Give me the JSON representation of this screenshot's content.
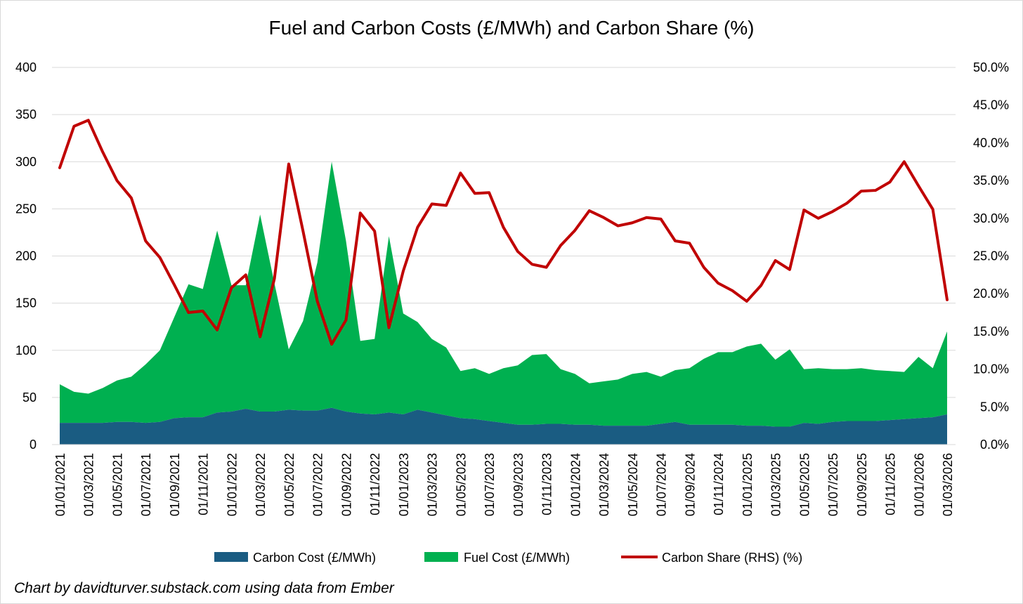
{
  "chart_data": {
    "type": "area",
    "title": "Fuel and Carbon Costs (£/MWh) and Carbon Share (%)",
    "xlabel": "",
    "ylabel": "",
    "y2label": "",
    "ylim": [
      0,
      400
    ],
    "y2lim": [
      0.0,
      0.5
    ],
    "yticks": [
      0,
      50,
      100,
      150,
      200,
      250,
      300,
      350,
      400
    ],
    "y2ticks": [
      "0.0%",
      "5.0%",
      "10.0%",
      "15.0%",
      "20.0%",
      "25.0%",
      "30.0%",
      "35.0%",
      "40.0%",
      "45.0%",
      "50.0%"
    ],
    "xtick_labels": [
      "01/01/2021",
      "01/03/2021",
      "01/05/2021",
      "01/07/2021",
      "01/09/2021",
      "01/11/2021",
      "01/01/2022",
      "01/03/2022",
      "01/05/2022",
      "01/07/2022",
      "01/09/2022",
      "01/11/2022",
      "01/01/2023",
      "01/03/2023",
      "01/05/2023",
      "01/07/2023",
      "01/09/2023",
      "01/11/2023",
      "01/01/2024",
      "01/03/2024",
      "01/05/2024",
      "01/07/2024",
      "01/09/2024",
      "01/11/2024",
      "01/01/2025",
      "01/03/2025",
      "01/05/2025",
      "01/07/2025",
      "01/09/2025",
      "01/11/2025",
      "01/01/2026",
      "01/03/2026"
    ],
    "x": [
      "2021-01",
      "2021-02",
      "2021-03",
      "2021-04",
      "2021-05",
      "2021-06",
      "2021-07",
      "2021-08",
      "2021-09",
      "2021-10",
      "2021-11",
      "2021-12",
      "2022-01",
      "2022-02",
      "2022-03",
      "2022-04",
      "2022-05",
      "2022-06",
      "2022-07",
      "2022-08",
      "2022-09",
      "2022-10",
      "2022-11",
      "2022-12",
      "2023-01",
      "2023-02",
      "2023-03",
      "2023-04",
      "2023-05",
      "2023-06",
      "2023-07",
      "2023-08",
      "2023-09",
      "2023-10",
      "2023-11",
      "2023-12",
      "2024-01",
      "2024-02",
      "2024-03",
      "2024-04",
      "2024-05",
      "2024-06",
      "2024-07",
      "2024-08",
      "2024-09",
      "2024-10",
      "2024-11",
      "2024-12",
      "2025-01",
      "2025-02",
      "2025-03",
      "2025-04",
      "2025-05",
      "2025-06",
      "2025-07",
      "2025-08",
      "2025-09",
      "2025-10",
      "2025-11",
      "2025-12",
      "2026-01",
      "2026-02",
      "2026-03"
    ],
    "series": [
      {
        "name": "Carbon Cost (£/MWh)",
        "type": "stacked-area",
        "color": "#1a5c82",
        "values": [
          23,
          23,
          23,
          23,
          24,
          24,
          23,
          24,
          28,
          29,
          29,
          34,
          35,
          38,
          35,
          35,
          37,
          36,
          36,
          39,
          35,
          33,
          32,
          34,
          32,
          37,
          34,
          31,
          28,
          27,
          25,
          23,
          21,
          21,
          22,
          22,
          21,
          21,
          20,
          20,
          20,
          20,
          22,
          24,
          21,
          21,
          21,
          21,
          20,
          20,
          19,
          19,
          23,
          22,
          24,
          25,
          25,
          25,
          26,
          27,
          28,
          29,
          32
        ]
      },
      {
        "name": "Fuel Cost (£/MWh)",
        "type": "stacked-area",
        "color": "#00b050",
        "values": [
          41,
          33,
          31,
          37,
          44,
          48,
          62,
          76,
          107,
          141,
          136,
          193,
          134,
          131,
          209,
          136,
          64,
          95,
          157,
          261,
          181,
          77,
          80,
          187,
          107,
          93,
          78,
          72,
          50,
          54,
          50,
          58,
          63,
          74,
          74,
          58,
          54,
          44,
          47,
          49,
          55,
          57,
          50,
          55,
          60,
          70,
          77,
          77,
          84,
          87,
          71,
          82,
          57,
          59,
          56,
          55,
          56,
          54,
          52,
          50,
          65,
          52,
          88
        ]
      },
      {
        "name": "Carbon Share (RHS) (%)",
        "type": "line",
        "axis": "right",
        "color": "#c00000",
        "values": [
          0.367,
          0.422,
          0.43,
          0.388,
          0.35,
          0.327,
          0.27,
          0.248,
          0.212,
          0.175,
          0.177,
          0.152,
          0.208,
          0.225,
          0.143,
          0.22,
          0.372,
          0.283,
          0.19,
          0.133,
          0.165,
          0.307,
          0.283,
          0.155,
          0.23,
          0.288,
          0.319,
          0.317,
          0.36,
          0.333,
          0.334,
          0.288,
          0.256,
          0.239,
          0.235,
          0.264,
          0.284,
          0.31,
          0.301,
          0.29,
          0.294,
          0.301,
          0.299,
          0.27,
          0.267,
          0.235,
          0.214,
          0.204,
          0.19,
          0.211,
          0.244,
          0.232,
          0.311,
          0.3,
          0.309,
          0.32,
          0.336,
          0.337,
          0.348,
          0.375,
          0.343,
          0.312,
          0.192
        ]
      }
    ],
    "legend": "bottom",
    "grid": true
  },
  "source_note": "Chart by davidturver.substack.com using data from Ember"
}
